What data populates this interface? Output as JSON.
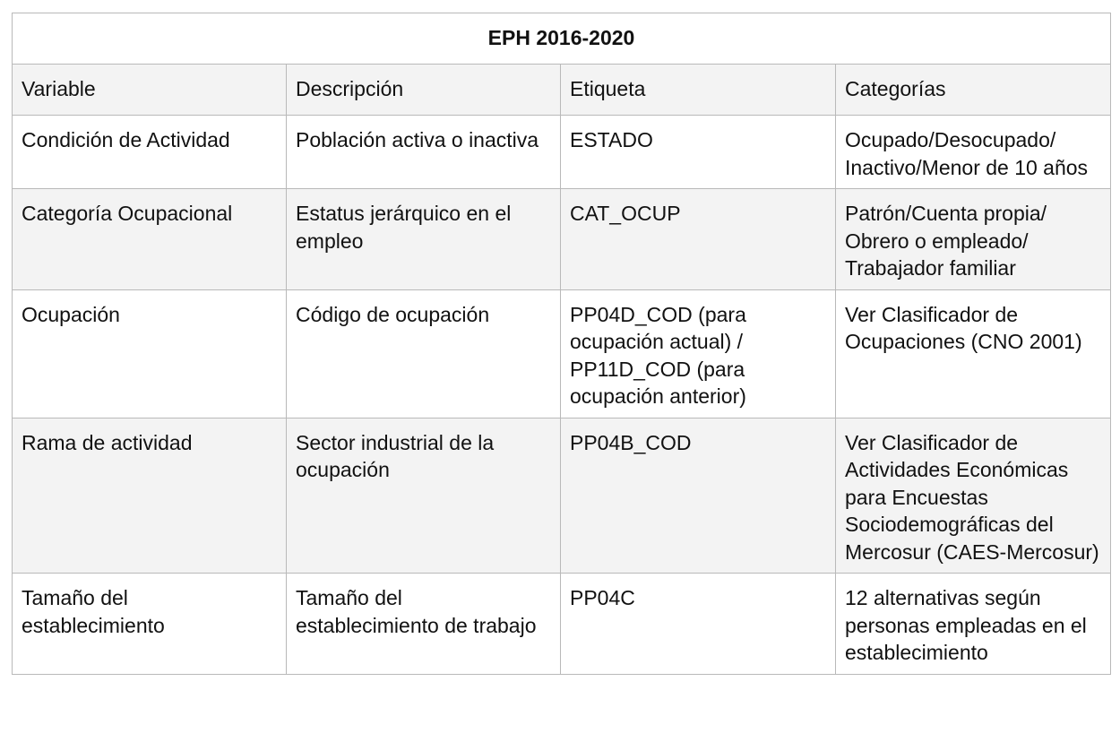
{
  "table": {
    "title": "EPH 2016-2020",
    "headers": [
      "Variable",
      "Descripción",
      "Etiqueta",
      "Categorías"
    ],
    "rows": [
      {
        "variable": "Condición de Actividad",
        "descripcion": "Población activa o inactiva",
        "etiqueta": "ESTADO",
        "categorias": "Ocupado/Desocupado/ Inactivo/Menor de 10 años"
      },
      {
        "variable": "Categoría Ocupacional",
        "descripcion": "Estatus jerárquico en el empleo",
        "etiqueta": "CAT_OCUP",
        "categorias": "Patrón/Cuenta propia/ Obrero o empleado/ Trabajador familiar"
      },
      {
        "variable": "Ocupación",
        "descripcion": "Código de ocupación",
        "etiqueta": "PP04D_COD (para ocupación actual) / PP11D_COD (para ocupación anterior)",
        "categorias": "Ver Clasificador de Ocupaciones (CNO 2001)"
      },
      {
        "variable": "Rama de actividad",
        "descripcion": "Sector industrial de la ocupación",
        "etiqueta": "PP04B_COD",
        "categorias": "Ver Clasificador de Actividades Económicas para Encuestas Sociodemográficas del Mercosur (CAES-Mercosur)"
      },
      {
        "variable": "Tamaño del establecimiento",
        "descripcion": "Tamaño del establecimiento de trabajo",
        "etiqueta": "PP04C",
        "categorias": "12 alternativas según personas empleadas en el establecimiento"
      }
    ]
  }
}
